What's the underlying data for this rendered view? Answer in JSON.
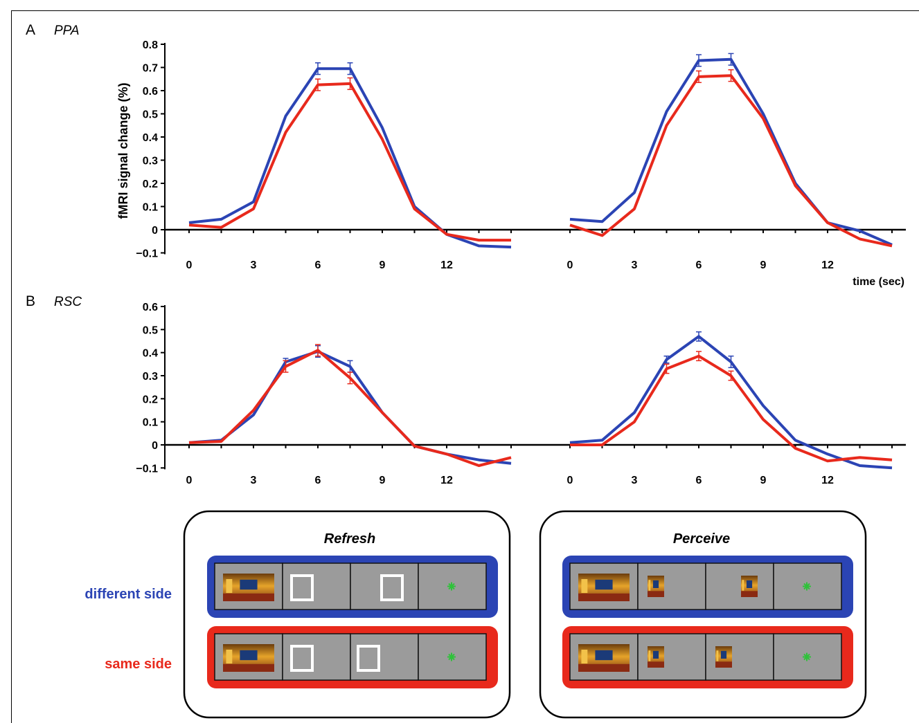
{
  "panels": {
    "a": {
      "letter": "A",
      "name": "PPA"
    },
    "b": {
      "letter": "B",
      "name": "RSC"
    }
  },
  "axis": {
    "ylabel": "fMRI signal change (%)",
    "xlabel": "time (sec)"
  },
  "colors": {
    "different_side": "#2b44b4",
    "same_side": "#e8291c",
    "panel_gray": "#9b9b9b",
    "fixation": "#2fc23a"
  },
  "legend": {
    "different": "different side",
    "same": "same side"
  },
  "conditions": {
    "refresh": {
      "title": "Refresh"
    },
    "perceive": {
      "title": "Perceive"
    }
  },
  "chart_data": [
    {
      "type": "line",
      "panel": "A",
      "title": "PPA",
      "subtitle": "Refresh",
      "x": [
        0,
        1.5,
        3,
        4.5,
        6,
        7.5,
        9,
        10.5,
        12,
        13.5,
        15
      ],
      "xticks": [
        0,
        3,
        6,
        9,
        12
      ],
      "yticks": [
        -0.1,
        0,
        0.1,
        0.2,
        0.3,
        0.4,
        0.5,
        0.6,
        0.7,
        0.8
      ],
      "ylim": [
        -0.1,
        0.8
      ],
      "series": [
        {
          "name": "different side",
          "color": "#2b44b4",
          "values": [
            0.03,
            0.045,
            0.12,
            0.49,
            0.695,
            0.695,
            0.44,
            0.1,
            -0.02,
            -0.07,
            -0.075
          ],
          "err": [
            0,
            0,
            0,
            0,
            0.025,
            0.025,
            0,
            0,
            0,
            0,
            0
          ]
        },
        {
          "name": "same side",
          "color": "#e8291c",
          "values": [
            0.02,
            0.01,
            0.09,
            0.42,
            0.625,
            0.63,
            0.39,
            0.09,
            -0.02,
            -0.045,
            -0.045
          ],
          "err": [
            0,
            0,
            0,
            0,
            0.025,
            0.025,
            0,
            0,
            0,
            0,
            0
          ]
        }
      ]
    },
    {
      "type": "line",
      "panel": "A",
      "title": "PPA",
      "subtitle": "Perceive",
      "x": [
        0,
        1.5,
        3,
        4.5,
        6,
        7.5,
        9,
        10.5,
        12,
        13.5,
        15
      ],
      "xticks": [
        0,
        3,
        6,
        9,
        12
      ],
      "ylim": [
        -0.1,
        0.8
      ],
      "series": [
        {
          "name": "different side",
          "color": "#2b44b4",
          "values": [
            0.045,
            0.035,
            0.16,
            0.51,
            0.73,
            0.735,
            0.5,
            0.2,
            0.03,
            -0.005,
            -0.065
          ],
          "err": [
            0,
            0,
            0,
            0,
            0.025,
            0.025,
            0,
            0,
            0,
            0,
            0
          ]
        },
        {
          "name": "same side",
          "color": "#e8291c",
          "values": [
            0.02,
            -0.025,
            0.09,
            0.45,
            0.66,
            0.665,
            0.48,
            0.19,
            0.03,
            -0.04,
            -0.07
          ],
          "err": [
            0,
            0,
            0,
            0,
            0.025,
            0.025,
            0,
            0,
            0,
            0,
            0
          ]
        }
      ]
    },
    {
      "type": "line",
      "panel": "B",
      "title": "RSC",
      "subtitle": "Refresh",
      "x": [
        0,
        1.5,
        3,
        4.5,
        6,
        7.5,
        9,
        10.5,
        12,
        13.5,
        15
      ],
      "xticks": [
        0,
        3,
        6,
        9,
        12
      ],
      "yticks": [
        -0.1,
        0,
        0.1,
        0.2,
        0.3,
        0.4,
        0.5,
        0.6
      ],
      "ylim": [
        -0.1,
        0.6
      ],
      "series": [
        {
          "name": "different side",
          "color": "#2b44b4",
          "values": [
            0.01,
            0.02,
            0.13,
            0.36,
            0.405,
            0.34,
            0.14,
            -0.005,
            -0.04,
            -0.065,
            -0.08
          ],
          "err": [
            0,
            0,
            0,
            0.015,
            0.025,
            0.025,
            0,
            0,
            0,
            0,
            0
          ]
        },
        {
          "name": "same side",
          "color": "#e8291c",
          "values": [
            0.01,
            0.015,
            0.15,
            0.34,
            0.41,
            0.29,
            0.14,
            -0.005,
            -0.04,
            -0.09,
            -0.055
          ],
          "err": [
            0,
            0,
            0,
            0.025,
            0.025,
            0.025,
            0,
            0,
            0,
            0,
            0
          ]
        }
      ]
    },
    {
      "type": "line",
      "panel": "B",
      "title": "RSC",
      "subtitle": "Perceive",
      "x": [
        0,
        1.5,
        3,
        4.5,
        6,
        7.5,
        9,
        10.5,
        12,
        13.5,
        15
      ],
      "xticks": [
        0,
        3,
        6,
        9,
        12
      ],
      "ylim": [
        -0.1,
        0.6
      ],
      "series": [
        {
          "name": "different side",
          "color": "#2b44b4",
          "values": [
            0.01,
            0.02,
            0.14,
            0.37,
            0.47,
            0.36,
            0.17,
            0.02,
            -0.04,
            -0.09,
            -0.1
          ],
          "err": [
            0,
            0,
            0,
            0.015,
            0.02,
            0.025,
            0,
            0,
            0,
            0,
            0
          ]
        },
        {
          "name": "same side",
          "color": "#e8291c",
          "values": [
            0.0,
            0.0,
            0.1,
            0.33,
            0.385,
            0.3,
            0.11,
            -0.015,
            -0.07,
            -0.055,
            -0.065
          ],
          "err": [
            0,
            0,
            0,
            0.02,
            0.02,
            0.02,
            0,
            0,
            0,
            0,
            0
          ]
        }
      ]
    }
  ]
}
